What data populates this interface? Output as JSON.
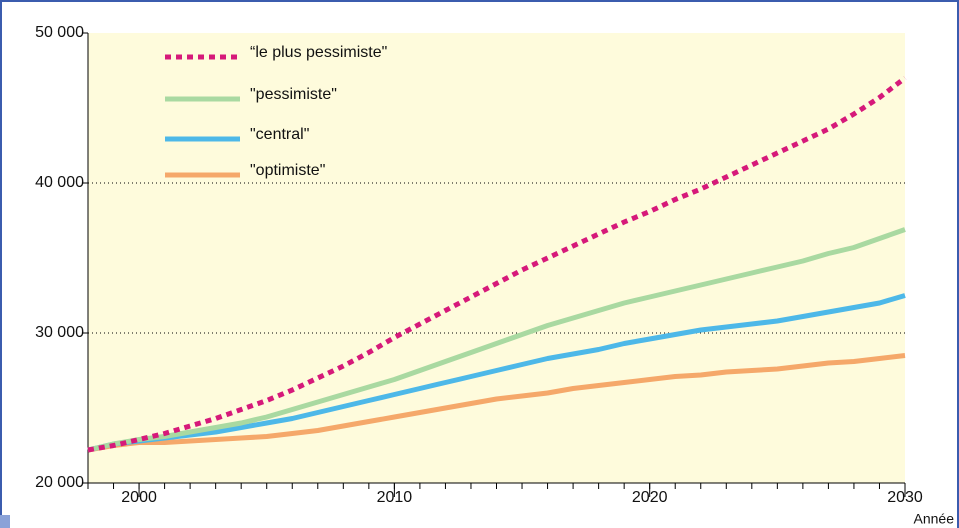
{
  "chart_data": {
    "type": "line",
    "x_label": "Année",
    "x": [
      1998,
      1999,
      2000,
      2001,
      2002,
      2003,
      2004,
      2005,
      2006,
      2007,
      2008,
      2009,
      2010,
      2011,
      2012,
      2013,
      2014,
      2015,
      2016,
      2017,
      2018,
      2019,
      2020,
      2021,
      2022,
      2023,
      2024,
      2025,
      2026,
      2027,
      2028,
      2029,
      2030
    ],
    "xlim": [
      1998,
      2030
    ],
    "xticks": [
      2000,
      2010,
      2020,
      2030
    ],
    "ylim": [
      20000,
      50000
    ],
    "yticks": [
      {
        "value": 20000,
        "label": "20 000"
      },
      {
        "value": 30000,
        "label": "30 000"
      },
      {
        "value": 40000,
        "label": "40 000"
      },
      {
        "value": 50000,
        "label": "50 000"
      }
    ],
    "grid": true,
    "series": [
      {
        "name": "“le plus pessimiste\"",
        "color": "#d6197a",
        "dashed": true,
        "values": [
          22200,
          22500,
          22900,
          23300,
          23800,
          24300,
          24900,
          25500,
          26200,
          27000,
          27800,
          28700,
          29700,
          30600,
          31500,
          32400,
          33300,
          34200,
          35000,
          35800,
          36600,
          37400,
          38100,
          38900,
          39600,
          40400,
          41200,
          42000,
          42800,
          43600,
          44600,
          45700,
          47000
        ]
      },
      {
        "name": "\"pessimiste\"",
        "color": "#a9d9a1",
        "dashed": false,
        "values": [
          22200,
          22600,
          22900,
          23100,
          23400,
          23700,
          24000,
          24400,
          24900,
          25400,
          25900,
          26400,
          26900,
          27500,
          28100,
          28700,
          29300,
          29900,
          30500,
          31000,
          31500,
          32000,
          32400,
          32800,
          33200,
          33600,
          34000,
          34400,
          34800,
          35300,
          35700,
          36300,
          36900
        ]
      },
      {
        "name": "\"central\"",
        "color": "#4db8e8",
        "dashed": false,
        "values": [
          22200,
          22600,
          22800,
          23000,
          23200,
          23400,
          23700,
          24000,
          24300,
          24700,
          25100,
          25500,
          25900,
          26300,
          26700,
          27100,
          27500,
          27900,
          28300,
          28600,
          28900,
          29300,
          29600,
          29900,
          30200,
          30400,
          30600,
          30800,
          31100,
          31400,
          31700,
          32000,
          32500
        ]
      },
      {
        "name": "\"optimiste\"",
        "color": "#f5a86a",
        "dashed": false,
        "values": [
          22200,
          22500,
          22700,
          22700,
          22800,
          22900,
          23000,
          23100,
          23300,
          23500,
          23800,
          24100,
          24400,
          24700,
          25000,
          25300,
          25600,
          25800,
          26000,
          26300,
          26500,
          26700,
          26900,
          27100,
          27200,
          27400,
          27500,
          27600,
          27800,
          28000,
          28100,
          28300,
          28500
        ]
      }
    ]
  }
}
